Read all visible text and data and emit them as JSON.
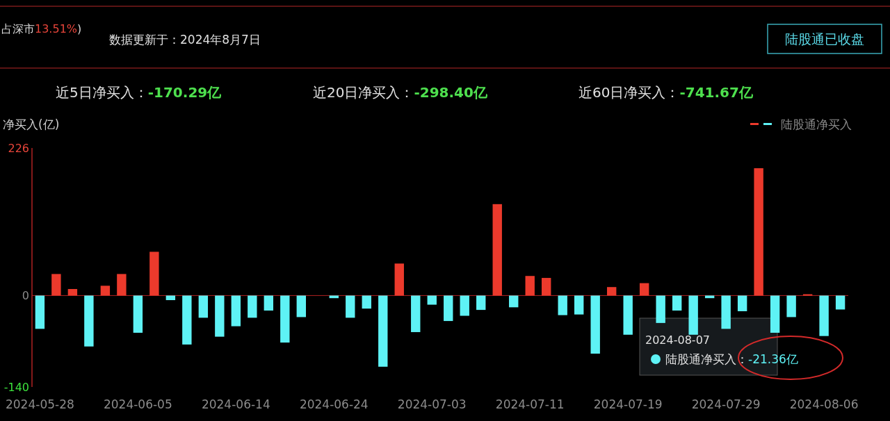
{
  "chart_data": {
    "type": "bar",
    "subtitle": "数据更新于：2024年8月7日",
    "ylabel": "净买入(亿)",
    "categories": [
      "2024-05-28",
      null,
      null,
      null,
      null,
      null,
      "2024-06-05",
      null,
      null,
      null,
      null,
      null,
      "2024-06-14",
      null,
      null,
      null,
      null,
      null,
      "2024-06-24",
      null,
      null,
      null,
      null,
      null,
      "2024-07-03",
      null,
      null,
      null,
      null,
      null,
      "2024-07-11",
      null,
      null,
      null,
      null,
      null,
      "2024-07-19",
      null,
      null,
      null,
      null,
      null,
      "2024-07-29",
      null,
      null,
      null,
      null,
      null,
      "2024-08-06",
      null
    ],
    "series": [
      {
        "name": "陆股通净买入",
        "values": [
          -51,
          33,
          10,
          -78,
          15,
          33,
          -57,
          67,
          -7,
          -75,
          -34,
          -63,
          -47,
          -34,
          -23,
          -72,
          -33,
          0,
          -4,
          -34,
          -20,
          -109,
          49,
          -56,
          -14,
          -39,
          -31,
          -22,
          140,
          -18,
          30,
          27,
          -30,
          -29,
          -89,
          13,
          -60,
          19,
          -42,
          -23,
          -60,
          -4,
          -51,
          -24,
          195,
          -57,
          -33,
          2,
          -62,
          -21.36
        ],
        "colors": [
          "#5ef2f5",
          "#ec3a2c",
          "#ec3a2c",
          "#5ef2f5",
          "#ec3a2c",
          "#ec3a2c",
          "#5ef2f5",
          "#ec3a2c",
          "#5ef2f5",
          "#5ef2f5",
          "#5ef2f5",
          "#5ef2f5",
          "#5ef2f5",
          "#5ef2f5",
          "#5ef2f5",
          "#5ef2f5",
          "#5ef2f5",
          "#5ef2f5",
          "#5ef2f5",
          "#5ef2f5",
          "#5ef2f5",
          "#5ef2f5",
          "#ec3a2c",
          "#5ef2f5",
          "#5ef2f5",
          "#5ef2f5",
          "#5ef2f5",
          "#5ef2f5",
          "#ec3a2c",
          "#5ef2f5",
          "#ec3a2c",
          "#ec3a2c",
          "#5ef2f5",
          "#5ef2f5",
          "#5ef2f5",
          "#ec3a2c",
          "#5ef2f5",
          "#ec3a2c",
          "#5ef2f5",
          "#5ef2f5",
          "#5ef2f5",
          "#5ef2f5",
          "#5ef2f5",
          "#5ef2f5",
          "#ec3a2c",
          "#5ef2f5",
          "#5ef2f5",
          "#ec3a2c",
          "#5ef2f5",
          "#5ef2f5"
        ]
      }
    ],
    "ylim": [
      -140,
      226
    ],
    "ref_lines": [
      {
        "axis": "y",
        "value": 0,
        "color": "#b02222"
      }
    ],
    "yticks": [
      226,
      0,
      -140
    ],
    "legend": "top right",
    "annotations": [
      "占深市13.51%)",
      "陆股通已收盘",
      "近5日净买入：-170.29亿",
      "近20日净买入：-298.40亿",
      "近60日净买入：-741.67亿",
      "2024-08-07",
      "陆股通净买入：-21.36亿"
    ]
  }
}
